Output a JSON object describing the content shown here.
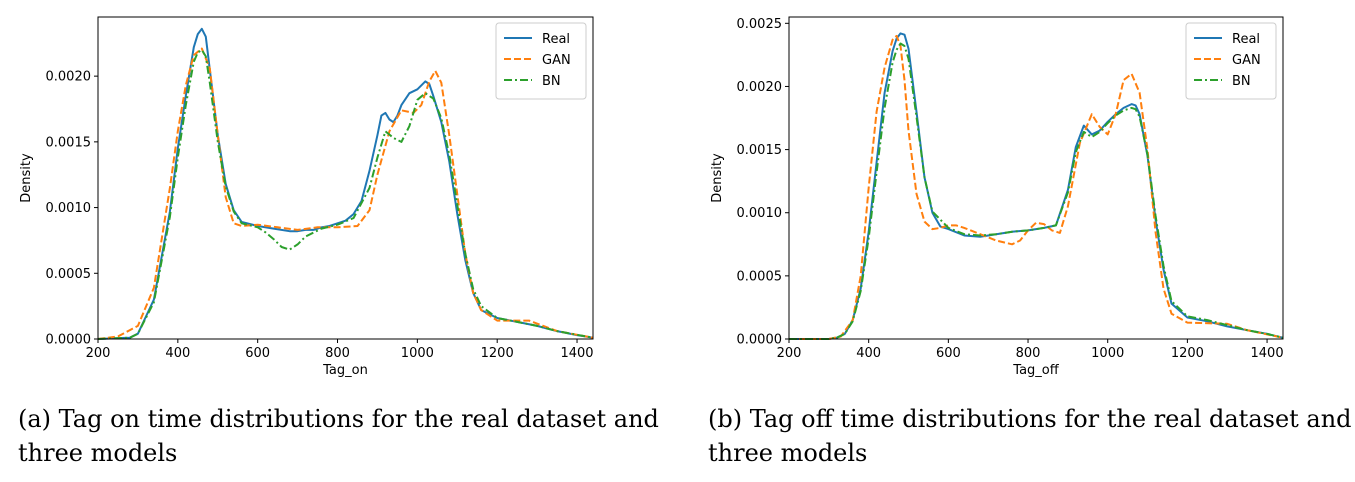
{
  "chart_data": [
    {
      "type": "line",
      "xlabel": "Tag_on",
      "ylabel": "Density",
      "xlim": [
        200,
        1440
      ],
      "ylim": [
        0,
        0.00245
      ],
      "xticks": [
        "200",
        "400",
        "600",
        "800",
        "1000",
        "1200",
        "1400"
      ],
      "yticks": [
        "0.0000",
        "0.0005",
        "0.0010",
        "0.0015",
        "0.0020"
      ],
      "ytick_values": [
        0,
        0.0005,
        0.001,
        0.0015,
        0.002
      ],
      "legend_position": "top-right",
      "caption": "(a) Tag on time distributions for the real dataset and three models",
      "series": [
        {
          "name": "Real",
          "color": "#1f77b4",
          "style": "solid",
          "x": [
            200,
            280,
            300,
            340,
            380,
            400,
            420,
            440,
            450,
            460,
            470,
            480,
            500,
            520,
            540,
            560,
            600,
            640,
            680,
            700,
            720,
            740,
            760,
            780,
            800,
            820,
            840,
            860,
            880,
            900,
            910,
            920,
            930,
            940,
            950,
            960,
            980,
            1000,
            1020,
            1030,
            1040,
            1060,
            1080,
            1100,
            1120,
            1140,
            1160,
            1200,
            1250,
            1300,
            1350,
            1400,
            1440
          ],
          "y": [
            0,
            1e-05,
            4e-05,
            0.0003,
            0.00097,
            0.00145,
            0.00185,
            0.00222,
            0.00232,
            0.00236,
            0.0023,
            0.00205,
            0.00155,
            0.00118,
            0.00098,
            0.00089,
            0.00086,
            0.00084,
            0.00082,
            0.00082,
            0.00083,
            0.00083,
            0.00085,
            0.00086,
            0.00088,
            0.0009,
            0.00095,
            0.00105,
            0.00128,
            0.00155,
            0.0017,
            0.00172,
            0.00167,
            0.00165,
            0.0017,
            0.00178,
            0.00187,
            0.0019,
            0.00196,
            0.00194,
            0.00185,
            0.00165,
            0.00135,
            0.00095,
            0.0006,
            0.00035,
            0.00022,
            0.00016,
            0.00013,
            0.0001,
            6e-05,
            3e-05,
            1e-05
          ]
        },
        {
          "name": "GAN",
          "color": "#ff7f0e",
          "style": "dashed",
          "x": [
            200,
            250,
            300,
            340,
            380,
            400,
            420,
            440,
            460,
            480,
            500,
            520,
            540,
            560,
            600,
            650,
            700,
            750,
            800,
            850,
            880,
            900,
            930,
            960,
            990,
            1010,
            1030,
            1045,
            1060,
            1080,
            1100,
            1120,
            1140,
            1160,
            1200,
            1280,
            1350,
            1440
          ],
          "y": [
            0,
            2e-05,
            0.0001,
            0.00039,
            0.00115,
            0.00158,
            0.00193,
            0.00216,
            0.00221,
            0.00206,
            0.00155,
            0.00108,
            0.00088,
            0.00086,
            0.00087,
            0.00085,
            0.00083,
            0.00085,
            0.00085,
            0.00086,
            0.00098,
            0.00125,
            0.00158,
            0.00174,
            0.00172,
            0.00178,
            0.00196,
            0.00204,
            0.00195,
            0.00155,
            0.0011,
            0.00065,
            0.00035,
            0.00022,
            0.00014,
            0.00014,
            6e-05,
            1e-05
          ]
        },
        {
          "name": "BN",
          "color": "#2ca02c",
          "style": "dashdot",
          "x": [
            200,
            280,
            300,
            340,
            380,
            400,
            420,
            440,
            450,
            460,
            470,
            480,
            500,
            520,
            540,
            560,
            600,
            620,
            640,
            660,
            680,
            700,
            720,
            760,
            800,
            840,
            880,
            900,
            920,
            940,
            960,
            980,
            1000,
            1020,
            1030,
            1040,
            1060,
            1080,
            1100,
            1120,
            1140,
            1160,
            1200,
            1250,
            1300,
            1350,
            1440
          ],
          "y": [
            0,
            1e-05,
            4e-05,
            0.00028,
            0.00093,
            0.00138,
            0.00178,
            0.00211,
            0.00218,
            0.0022,
            0.00215,
            0.00195,
            0.0015,
            0.00116,
            0.00097,
            0.00088,
            0.00085,
            0.00081,
            0.00076,
            0.0007,
            0.00068,
            0.00072,
            0.00078,
            0.00084,
            0.00087,
            0.00092,
            0.00115,
            0.00138,
            0.00158,
            0.00153,
            0.0015,
            0.00162,
            0.00182,
            0.00187,
            0.00185,
            0.00183,
            0.00168,
            0.0014,
            0.00102,
            0.00065,
            0.00038,
            0.00025,
            0.00016,
            0.00013,
            0.0001,
            6e-05,
            1e-05
          ]
        }
      ]
    },
    {
      "type": "line",
      "xlabel": "Tag_off",
      "ylabel": "Density",
      "xlim": [
        200,
        1440
      ],
      "ylim": [
        0,
        0.00255
      ],
      "xticks": [
        "200",
        "400",
        "600",
        "800",
        "1000",
        "1200",
        "1400"
      ],
      "yticks": [
        "0.0000",
        "0.0005",
        "0.0010",
        "0.0015",
        "0.0020",
        "0.0025"
      ],
      "ytick_values": [
        0,
        0.0005,
        0.001,
        0.0015,
        0.002,
        0.0025
      ],
      "legend_position": "top-right",
      "caption": "(b) Tag off time distributions for the real dataset and three models",
      "series": [
        {
          "name": "Real",
          "color": "#1f77b4",
          "style": "solid",
          "x": [
            200,
            300,
            320,
            340,
            360,
            380,
            400,
            420,
            440,
            460,
            470,
            480,
            490,
            500,
            520,
            540,
            560,
            580,
            600,
            640,
            680,
            720,
            760,
            800,
            840,
            870,
            900,
            920,
            940,
            960,
            980,
            1000,
            1020,
            1040,
            1060,
            1070,
            1080,
            1100,
            1120,
            1140,
            1160,
            1200,
            1250,
            1300,
            1350,
            1400,
            1440
          ],
          "y": [
            0,
            0,
            1e-05,
            4e-05,
            0.00015,
            0.0004,
            0.00085,
            0.0014,
            0.00195,
            0.00228,
            0.00238,
            0.00242,
            0.00241,
            0.0023,
            0.0018,
            0.00128,
            0.001,
            0.00089,
            0.00087,
            0.00082,
            0.00081,
            0.00083,
            0.00085,
            0.00086,
            0.00088,
            0.0009,
            0.00118,
            0.00152,
            0.00169,
            0.00162,
            0.00165,
            0.00172,
            0.00178,
            0.00183,
            0.00186,
            0.00185,
            0.00178,
            0.00145,
            0.00095,
            0.00055,
            0.00028,
            0.00017,
            0.00014,
            0.0001,
            7e-05,
            4e-05,
            1e-05
          ]
        },
        {
          "name": "GAN",
          "color": "#ff7f0e",
          "style": "dashed",
          "x": [
            200,
            300,
            330,
            360,
            380,
            400,
            420,
            440,
            460,
            470,
            480,
            490,
            500,
            520,
            540,
            560,
            580,
            600,
            620,
            640,
            680,
            720,
            760,
            780,
            800,
            820,
            840,
            860,
            880,
            900,
            930,
            960,
            980,
            1000,
            1020,
            1040,
            1060,
            1080,
            1100,
            1120,
            1140,
            1160,
            1200,
            1300,
            1350,
            1440
          ],
          "y": [
            0,
            0,
            2e-05,
            0.00015,
            0.0005,
            0.0012,
            0.0018,
            0.00215,
            0.00237,
            0.0024,
            0.00232,
            0.00205,
            0.00165,
            0.00115,
            0.00093,
            0.00087,
            0.00088,
            0.0009,
            0.0009,
            0.00088,
            0.00083,
            0.00078,
            0.00075,
            0.00078,
            0.00086,
            0.00092,
            0.00091,
            0.00086,
            0.00084,
            0.00105,
            0.00155,
            0.00178,
            0.00168,
            0.00162,
            0.00178,
            0.00205,
            0.0021,
            0.00195,
            0.0015,
            0.00085,
            0.0004,
            0.0002,
            0.00013,
            0.00012,
            7e-05,
            1e-05
          ]
        },
        {
          "name": "BN",
          "color": "#2ca02c",
          "style": "dashdot",
          "x": [
            200,
            300,
            320,
            340,
            360,
            380,
            400,
            420,
            440,
            460,
            470,
            480,
            490,
            500,
            520,
            540,
            560,
            600,
            640,
            680,
            720,
            760,
            800,
            840,
            870,
            900,
            920,
            940,
            960,
            980,
            1000,
            1020,
            1040,
            1060,
            1070,
            1080,
            1100,
            1120,
            1140,
            1160,
            1200,
            1250,
            1300,
            1350,
            1400,
            1440
          ],
          "y": [
            0,
            0,
            1e-05,
            4e-05,
            0.00014,
            0.00038,
            0.0008,
            0.00132,
            0.00183,
            0.00219,
            0.00229,
            0.00234,
            0.00232,
            0.00222,
            0.00176,
            0.00128,
            0.00101,
            0.00088,
            0.00083,
            0.00082,
            0.00083,
            0.00085,
            0.00086,
            0.00088,
            0.0009,
            0.00116,
            0.00148,
            0.00164,
            0.0016,
            0.00164,
            0.00171,
            0.00177,
            0.00181,
            0.00183,
            0.00182,
            0.00176,
            0.00146,
            0.00098,
            0.00058,
            0.0003,
            0.00018,
            0.00015,
            0.00011,
            7e-05,
            4e-05,
            1e-05
          ]
        }
      ]
    }
  ]
}
